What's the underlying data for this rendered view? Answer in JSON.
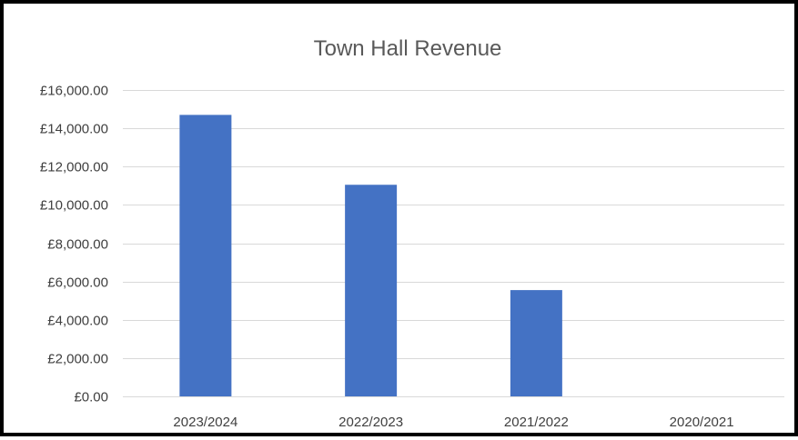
{
  "chart_data": {
    "type": "bar",
    "title": "Town Hall Revenue",
    "categories": [
      "2023/2024",
      "2022/2023",
      "2021/2022",
      "2020/2021"
    ],
    "values": [
      14700,
      11050,
      5550,
      0
    ],
    "ylim": [
      0,
      16000
    ],
    "ytick_step": 2000,
    "ytick_labels": [
      "£0.00",
      "£2,000.00",
      "£4,000.00",
      "£6,000.00",
      "£8,000.00",
      "£10,000.00",
      "£12,000.00",
      "£14,000.00",
      "£16,000.00"
    ],
    "xlabel": "",
    "ylabel": "",
    "grid": true,
    "legend": "none",
    "bar_color": "#4472C4",
    "grid_color": "#D9D9D9"
  }
}
